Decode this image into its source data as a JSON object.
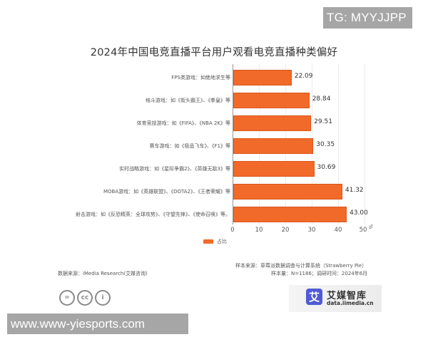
{
  "watermarks": {
    "tg_badge": "TG: MYYJJPP",
    "site_banner": "www.www-yiesports.com"
  },
  "chart_data": {
    "type": "bar",
    "orientation": "horizontal",
    "title": "2024年中国电竞直播平台用户观看电竞直播种类偏好",
    "categories": [
      "FPS类游戏：如绝地求生等",
      "格斗游戏：如《街头霸王》、《拳皇》等",
      "体育竞技游戏：如《FIFA》、《NBA 2K》等",
      "赛车游戏：如《极品飞车》、《F1》等",
      "实时战略游戏：如《星际争霸2》、《英雄无敌3》等",
      "MOBA游戏：如《英雄联盟》、《DOTA2》、《王者荣耀》等",
      "射击游戏：如《反恐精英：全球攻势》、《守望先锋》、《使命召唤》等。"
    ],
    "series": [
      {
        "name": "占比",
        "values": [
          22.09,
          28.84,
          29.51,
          30.35,
          30.69,
          41.32,
          43.0
        ],
        "color": "#f26a2a"
      }
    ],
    "value_labels": [
      "22.09",
      "28.84",
      "29.51",
      "30.35",
      "30.69",
      "41.32",
      "43.00"
    ],
    "xlabel": "%",
    "ylabel": "",
    "xlim": [
      0,
      50
    ],
    "xticks": [
      "0",
      "10",
      "20",
      "30",
      "40",
      "50"
    ],
    "grid": true,
    "legend_position": "bottom"
  },
  "footer": {
    "sample_source": "样本来源：草莓派数据调查与计算系统（Strawberry Pie）",
    "sample_info": "样本量：N=1186；调研时间：2024年6月",
    "data_source": "数据来源：iMedia Research(艾媒咨询)",
    "cc_icons": [
      "=",
      "cc",
      "i"
    ],
    "brand_logo_char": "艾",
    "brand_name": "艾媒智库",
    "brand_url": "data.iimedia.cn"
  }
}
